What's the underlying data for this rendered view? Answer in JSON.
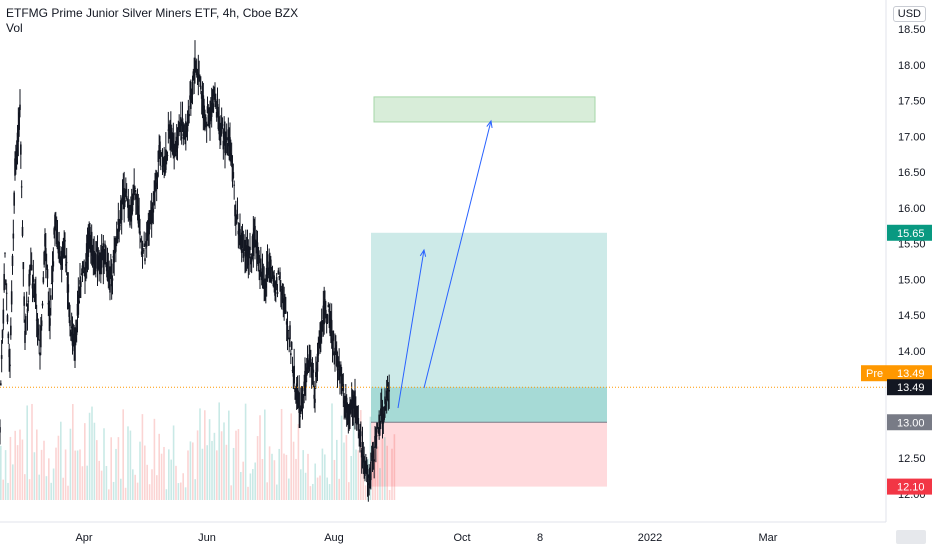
{
  "legend": {
    "title": "ETFMG Prime Junior Silver Miners ETF, 4h, Cboe BZX",
    "volume_label": "Vol"
  },
  "currency_button": "USD",
  "colors": {
    "up": "#26a69a",
    "down": "#ef5350",
    "candle": "#131722",
    "pre_market": "#ff9800",
    "target_zone": "#c8e6c9",
    "profit_zone": "#b2dfdb",
    "loss_zone": "#ffcdd2",
    "arrow": "#2962ff",
    "price_tag_teal": "#089981",
    "price_tag_gray": "#787b86",
    "price_tag_red": "#f23645",
    "price_tag_black": "#131722"
  },
  "chart_data": {
    "type": "candlestick",
    "y_axis": {
      "ticks": [
        "18.50",
        "18.00",
        "17.50",
        "17.00",
        "16.50",
        "16.00",
        "15.50",
        "15.00",
        "14.50",
        "14.00",
        "13.50",
        "13.00",
        "12.50",
        "12.00"
      ],
      "ylim": [
        11.8,
        18.7
      ]
    },
    "x_axis": {
      "ticks": [
        "Apr",
        "Jun",
        "Aug",
        "Oct",
        "8",
        "2022",
        "Mar"
      ]
    },
    "price_labels": {
      "target": "15.65",
      "pre_label": "Pre",
      "pre_value": "13.49",
      "last": "13.49",
      "entry": "13.00",
      "stop": "12.10"
    },
    "position": {
      "entry": 13.0,
      "target": 15.65,
      "stop": 12.1
    },
    "target_box": {
      "low": 17.2,
      "high": 17.55
    },
    "current_price": 13.49,
    "price_path": [
      [
        0,
        13.0
      ],
      [
        2,
        15.3
      ],
      [
        4,
        13.8
      ],
      [
        6,
        16.6
      ],
      [
        8,
        17.3
      ],
      [
        10,
        14.2
      ],
      [
        12,
        15.2
      ],
      [
        14,
        14.8
      ],
      [
        16,
        13.9
      ],
      [
        18,
        15.6
      ],
      [
        20,
        14.4
      ],
      [
        22,
        15.8
      ],
      [
        24,
        15.3
      ],
      [
        26,
        15.5
      ],
      [
        28,
        14.4
      ],
      [
        30,
        14.0
      ],
      [
        32,
        15.0
      ],
      [
        34,
        15.2
      ],
      [
        36,
        15.6
      ],
      [
        38,
        15.3
      ],
      [
        40,
        15.2
      ],
      [
        42,
        15.4
      ],
      [
        44,
        14.9
      ],
      [
        46,
        15.4
      ],
      [
        48,
        15.9
      ],
      [
        50,
        16.2
      ],
      [
        52,
        15.8
      ],
      [
        54,
        16.4
      ],
      [
        56,
        15.6
      ],
      [
        58,
        15.3
      ],
      [
        60,
        15.8
      ],
      [
        62,
        16.2
      ],
      [
        64,
        16.9
      ],
      [
        66,
        16.6
      ],
      [
        68,
        17.1
      ],
      [
        70,
        16.8
      ],
      [
        72,
        17.2
      ],
      [
        74,
        17.0
      ],
      [
        76,
        17.4
      ],
      [
        78,
        18.0
      ],
      [
        80,
        17.8
      ],
      [
        82,
        17.2
      ],
      [
        84,
        17.3
      ],
      [
        86,
        17.6
      ],
      [
        88,
        17.1
      ],
      [
        90,
        16.9
      ],
      [
        92,
        17.0
      ],
      [
        94,
        16.0
      ],
      [
        96,
        15.6
      ],
      [
        98,
        15.4
      ],
      [
        100,
        15.3
      ],
      [
        102,
        15.6
      ],
      [
        104,
        15.2
      ],
      [
        106,
        14.9
      ],
      [
        108,
        15.3
      ],
      [
        110,
        14.8
      ],
      [
        112,
        15.1
      ],
      [
        114,
        14.5
      ],
      [
        116,
        14.2
      ],
      [
        118,
        13.5
      ],
      [
        120,
        13.2
      ],
      [
        122,
        13.6
      ],
      [
        124,
        13.9
      ],
      [
        126,
        13.4
      ],
      [
        128,
        14.2
      ],
      [
        130,
        14.6
      ],
      [
        132,
        14.4
      ],
      [
        134,
        14.0
      ],
      [
        136,
        13.7
      ],
      [
        138,
        13.3
      ],
      [
        140,
        13.1
      ],
      [
        142,
        13.3
      ],
      [
        144,
        12.8
      ],
      [
        146,
        12.4
      ],
      [
        148,
        12.2
      ],
      [
        150,
        12.7
      ],
      [
        152,
        13.0
      ],
      [
        154,
        13.2
      ],
      [
        156,
        13.5
      ]
    ],
    "volume_seed": 7
  }
}
